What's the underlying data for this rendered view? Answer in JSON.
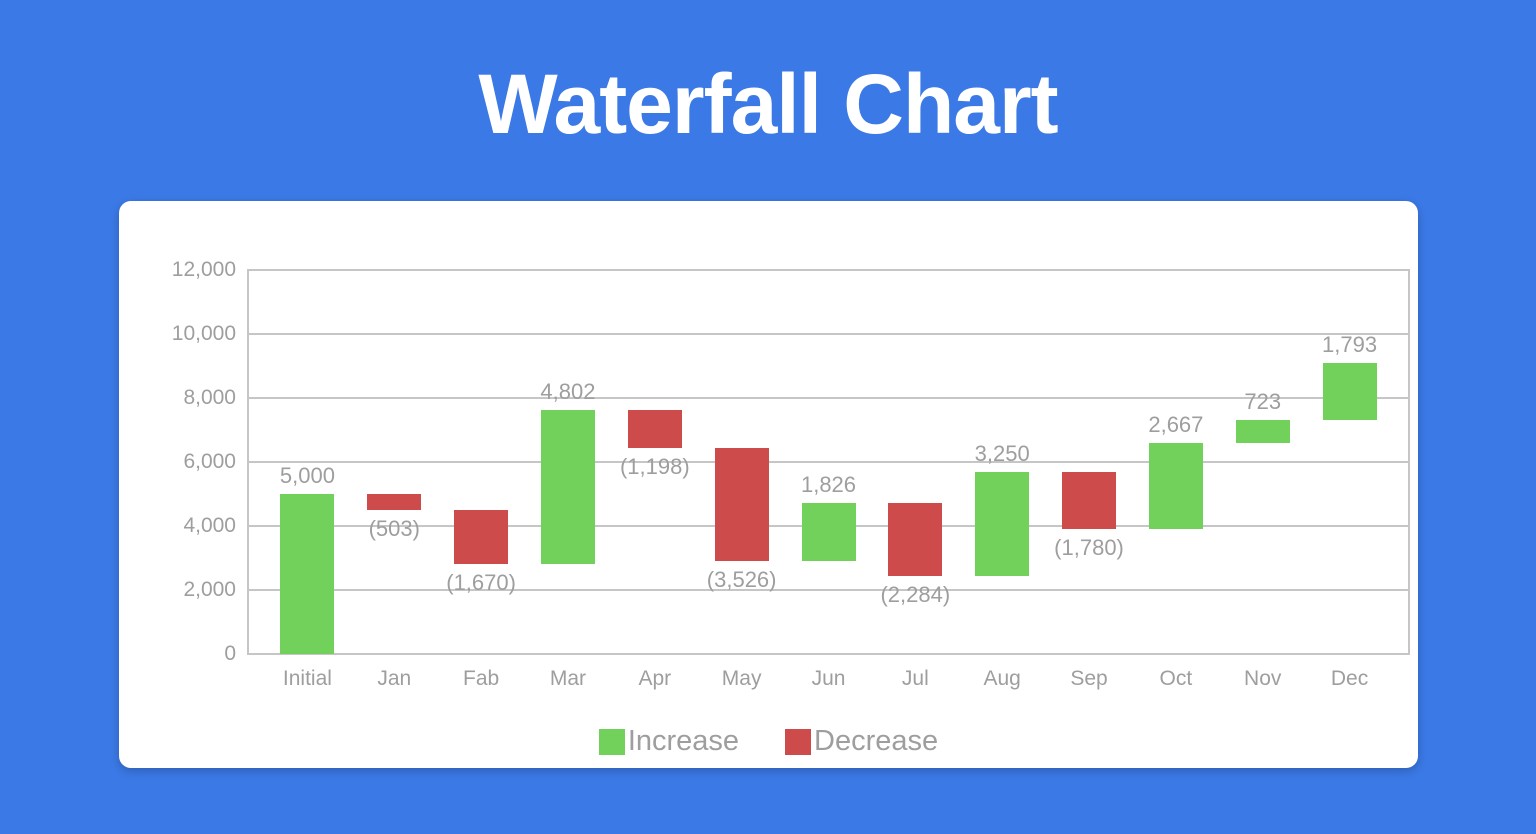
{
  "title": "Waterfall Chart",
  "colors": {
    "background": "#3B79E6",
    "card": "#FFFFFF",
    "increase": "#72D15A",
    "decrease": "#CE4B4B",
    "gridline": "#C6C6C6",
    "label_text": "#9E9E9E",
    "title_text": "#FFFFFF"
  },
  "chart_data": {
    "type": "waterfall",
    "title": "Waterfall Chart",
    "categories": [
      "Initial",
      "Jan",
      "Fab",
      "Mar",
      "Apr",
      "May",
      "Jun",
      "Jul",
      "Aug",
      "Sep",
      "Oct",
      "Nov",
      "Dec"
    ],
    "values": [
      5000,
      -503,
      -1670,
      4802,
      -1198,
      -3526,
      1826,
      -2284,
      3250,
      -1780,
      2667,
      723,
      1793
    ],
    "bar_labels": [
      "5,000",
      "(503)",
      "(1,670)",
      "4,802",
      "(1,198)",
      "(3,526)",
      "1,826",
      "(2,284)",
      "3,250",
      "(1,780)",
      "2,667",
      "723",
      "1,793"
    ],
    "cumulative": [
      5000,
      4497,
      2827,
      7629,
      6431,
      2905,
      4731,
      2447,
      5697,
      3917,
      6584,
      7307,
      9100
    ],
    "yticks": [
      12000,
      10000,
      8000,
      6000,
      4000,
      2000,
      0
    ],
    "ytick_labels": [
      "12,000",
      "10,000",
      "8,000",
      "6,000",
      "4,000",
      "2,000",
      "0"
    ],
    "ylim": [
      0,
      12000
    ],
    "grid": true,
    "legend_position": "bottom",
    "legend": [
      "Increase",
      "Decrease"
    ]
  }
}
